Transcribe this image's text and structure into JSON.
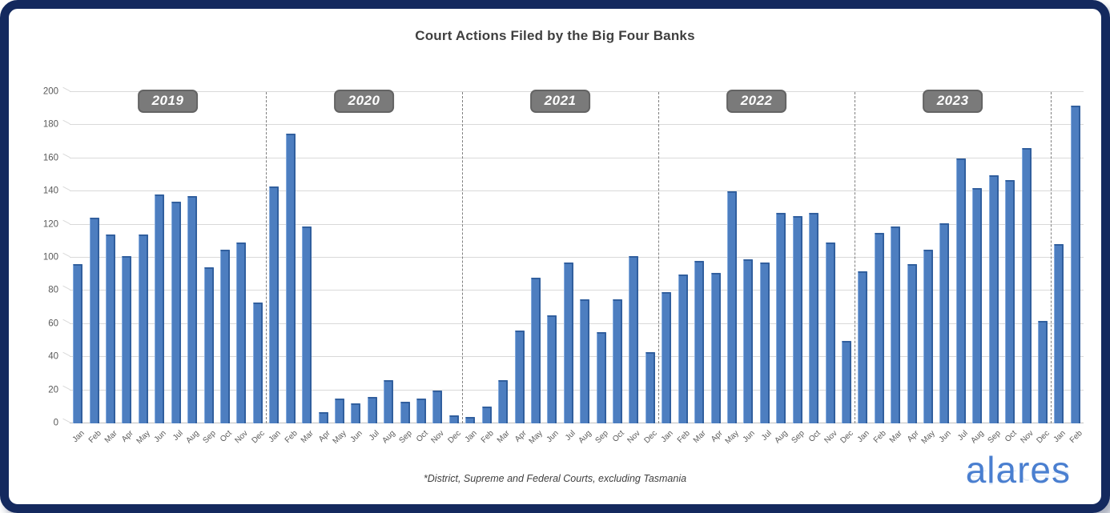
{
  "title": "Court Actions Filed by the Big Four Banks",
  "footnote": "*District, Supreme and Federal Courts, excluding Tasmania",
  "logo_text": "alares",
  "colors": {
    "frame": "#14295e",
    "bar_fill": "#4d7ec0",
    "bar_edge": "#315f9e",
    "grid": "#d9d9d9",
    "axis_text": "#595959",
    "year_badge_bg": "#7a7a7a",
    "year_badge_text": "#ffffff",
    "separator": "#7f7f7f",
    "logo_blue": "#4a7fd0"
  },
  "chart_data": {
    "type": "bar",
    "title": "Court Actions Filed by the Big Four Banks",
    "xlabel": "",
    "ylabel": "",
    "ylim": [
      0,
      200
    ],
    "yticks": [
      0,
      20,
      40,
      60,
      80,
      100,
      120,
      140,
      160,
      180,
      200
    ],
    "grid": "horizontal",
    "legend": "none",
    "year_groups": [
      {
        "badge": "2019",
        "months": [
          "Jan",
          "Feb",
          "Mar",
          "Apr",
          "May",
          "Jun",
          "Jul",
          "Aug",
          "Sep",
          "Oct",
          "Nov",
          "Dec"
        ],
        "values": [
          96,
          124,
          114,
          101,
          114,
          138,
          134,
          137,
          94,
          105,
          109,
          73
        ]
      },
      {
        "badge": "2020",
        "months": [
          "Jan",
          "Feb",
          "Mar",
          "Apr",
          "May",
          "Jun",
          "Jul",
          "Aug",
          "Sep",
          "Oct",
          "Nov",
          "Dec"
        ],
        "values": [
          143,
          175,
          119,
          7,
          15,
          12,
          16,
          26,
          13,
          15,
          20,
          5
        ]
      },
      {
        "badge": "2021",
        "months": [
          "Jan",
          "Feb",
          "Mar",
          "Apr",
          "May",
          "Jun",
          "Jul",
          "Aug",
          "Sep",
          "Oct",
          "Nov",
          "Dec"
        ],
        "values": [
          4,
          10,
          26,
          56,
          88,
          65,
          97,
          75,
          55,
          75,
          101,
          43
        ]
      },
      {
        "badge": "2022",
        "months": [
          "Jan",
          "Feb",
          "Mar",
          "Apr",
          "May",
          "Jun",
          "Jul",
          "Aug",
          "Sep",
          "Oct",
          "Nov",
          "Dec"
        ],
        "values": [
          79,
          90,
          98,
          91,
          140,
          99,
          97,
          127,
          125,
          127,
          109,
          50
        ]
      },
      {
        "badge": "2023",
        "months": [
          "Jan",
          "Feb",
          "Mar",
          "Apr",
          "May",
          "Jun",
          "Jul",
          "Aug",
          "Sep",
          "Oct",
          "Nov",
          "Dec"
        ],
        "values": [
          92,
          115,
          119,
          96,
          105,
          121,
          160,
          142,
          150,
          147,
          166,
          62
        ]
      },
      {
        "badge": "",
        "months": [
          "Jan",
          "Feb"
        ],
        "values": [
          108,
          192
        ]
      }
    ]
  }
}
